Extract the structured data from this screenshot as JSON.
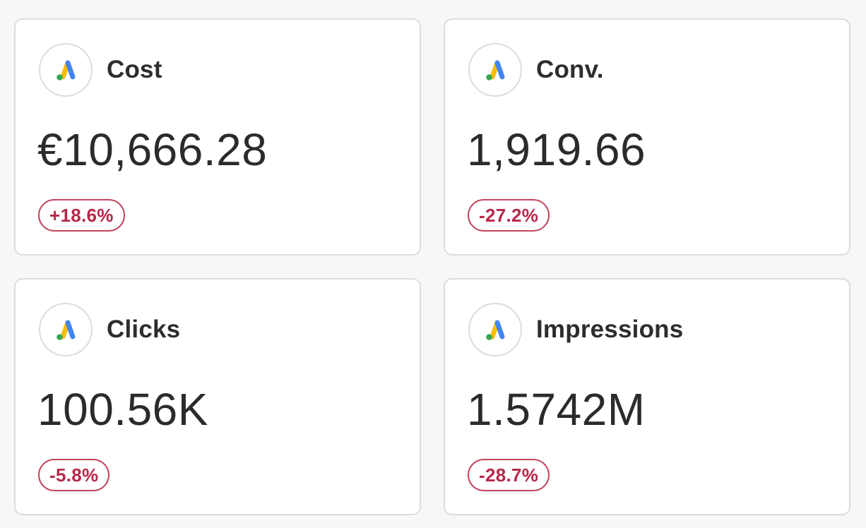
{
  "cards": [
    {
      "label": "Cost",
      "value": "€10,666.28",
      "change": "+18.6%",
      "icon": "google-ads-icon"
    },
    {
      "label": "Conv.",
      "value": "1,919.66",
      "change": "-27.2%",
      "icon": "google-ads-icon"
    },
    {
      "label": "Clicks",
      "value": "100.56K",
      "change": "-5.8%",
      "icon": "google-ads-icon"
    },
    {
      "label": "Impressions",
      "value": "1.5742M",
      "change": "-28.7%",
      "icon": "google-ads-icon"
    }
  ],
  "colors": {
    "badge_border": "#c2455f",
    "badge_text": "#b8284a",
    "ads_blue": "#4285F4",
    "ads_yellow": "#FBBC04",
    "ads_green": "#34A853"
  }
}
